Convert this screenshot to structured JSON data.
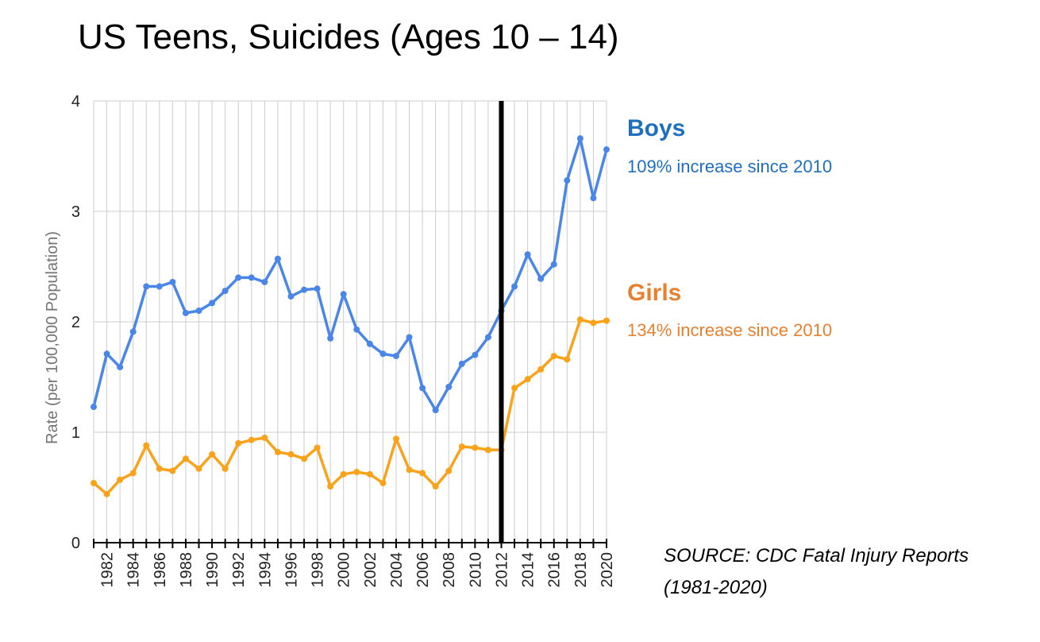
{
  "chart_data": {
    "type": "line",
    "title": "US Teens, Suicides (Ages 10 – 14)",
    "ylabel": "Rate (per 100,000 Population)",
    "xlabel": "",
    "ylim": [
      0,
      4
    ],
    "xlim": [
      1981,
      2020
    ],
    "yticks": [
      "0",
      "1",
      "2",
      "3",
      "4"
    ],
    "xticks": [
      "1982",
      "1984",
      "1986",
      "1988",
      "1990",
      "1992",
      "1994",
      "1996",
      "1998",
      "2000",
      "2002",
      "2004",
      "2006",
      "2008",
      "2010",
      "2012",
      "2014",
      "2016",
      "2018",
      "2020"
    ],
    "grid": true,
    "marker_line_year": 2012,
    "x": [
      1981,
      1982,
      1983,
      1984,
      1985,
      1986,
      1987,
      1988,
      1989,
      1990,
      1991,
      1992,
      1993,
      1994,
      1995,
      1996,
      1997,
      1998,
      1999,
      2000,
      2001,
      2002,
      2003,
      2004,
      2005,
      2006,
      2007,
      2008,
      2009,
      2010,
      2011,
      2012,
      2013,
      2014,
      2015,
      2016,
      2017,
      2018,
      2019,
      2020
    ],
    "series": [
      {
        "name": "Boys",
        "color": "#4a86e8",
        "values": [
          1.23,
          1.71,
          1.59,
          1.91,
          2.32,
          2.32,
          2.36,
          2.08,
          2.1,
          2.17,
          2.28,
          2.4,
          2.4,
          2.36,
          2.57,
          2.23,
          2.29,
          2.3,
          1.85,
          2.25,
          1.93,
          1.8,
          1.71,
          1.69,
          1.86,
          1.4,
          1.2,
          1.41,
          1.62,
          1.7,
          1.86,
          2.1,
          2.32,
          2.61,
          2.39,
          2.52,
          3.28,
          3.66,
          3.12,
          3.56
        ]
      },
      {
        "name": "Girls",
        "color": "#f9a21a",
        "values": [
          0.54,
          0.44,
          0.57,
          0.63,
          0.88,
          0.67,
          0.65,
          0.76,
          0.67,
          0.8,
          0.67,
          0.9,
          0.93,
          0.95,
          0.82,
          0.8,
          0.76,
          0.86,
          0.51,
          0.62,
          0.64,
          0.62,
          0.54,
          0.94,
          0.66,
          0.63,
          0.51,
          0.65,
          0.87,
          0.86,
          0.84,
          0.84,
          1.4,
          1.48,
          1.57,
          1.69,
          1.66,
          2.02,
          1.99,
          2.01
        ]
      }
    ]
  },
  "legend": {
    "boys": {
      "label": "Boys",
      "note": "109% increase since 2010",
      "color": "#1f6fbf"
    },
    "girls": {
      "label": "Girls",
      "note": "134% increase since 2010",
      "color": "#e8812f"
    }
  },
  "source": {
    "line1": "SOURCE: CDC Fatal Injury Reports",
    "line2": "(1981-2020)"
  }
}
